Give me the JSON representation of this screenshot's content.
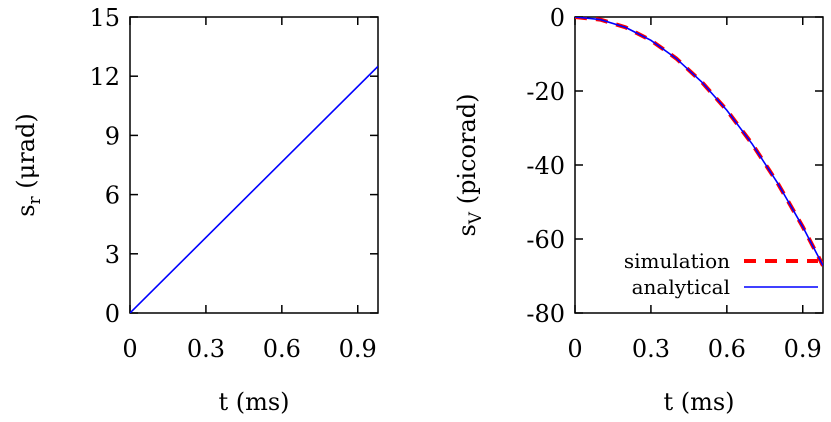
{
  "chart_data": [
    {
      "type": "line",
      "xlabel": "t (ms)",
      "ylabel": {
        "main": "s",
        "sub": "r",
        "unit": " (μrad)"
      },
      "xlim": [
        0,
        0.98
      ],
      "ylim": [
        0,
        15
      ],
      "xticks": [
        0,
        0.3,
        0.6,
        0.9
      ],
      "xtick_labels": [
        "0",
        "0.3",
        "0.6",
        "0.9"
      ],
      "yticks": [
        0,
        3,
        6,
        9,
        12,
        15
      ],
      "ytick_labels": [
        "0",
        "3",
        "6",
        "9",
        "12",
        "15"
      ],
      "grid": false,
      "series": [
        {
          "color": "#0000ff",
          "dash": "solid",
          "x": [
            0,
            0.98
          ],
          "y": [
            0,
            12.5
          ]
        }
      ]
    },
    {
      "type": "line",
      "xlabel": "t (ms)",
      "ylabel": {
        "main": "s",
        "sub": "V",
        "unit": " (picorad)"
      },
      "xlim": [
        0,
        0.98
      ],
      "ylim": [
        -80,
        0
      ],
      "xticks": [
        0,
        0.3,
        0.6,
        0.9
      ],
      "xtick_labels": [
        "0",
        "0.3",
        "0.6",
        "0.9"
      ],
      "yticks": [
        -80,
        -60,
        -40,
        -20,
        0
      ],
      "ytick_labels": [
        "-80",
        "-60",
        "-40",
        "-20",
        "0"
      ],
      "grid": false,
      "legend": "bottom-right",
      "series": [
        {
          "name": "simulation",
          "color": "#ff0000",
          "dash": "dashed",
          "x": [
            0,
            0.1,
            0.2,
            0.3,
            0.4,
            0.5,
            0.6,
            0.7,
            0.8,
            0.9,
            0.98
          ],
          "y": [
            0,
            -0.7,
            -2.8,
            -6.3,
            -11.2,
            -17.5,
            -25.2,
            -34.3,
            -44.8,
            -56.7,
            -67.2
          ]
        },
        {
          "name": "analytical",
          "color": "#0000ff",
          "dash": "solid",
          "x": [
            0,
            0.1,
            0.2,
            0.3,
            0.4,
            0.5,
            0.6,
            0.7,
            0.8,
            0.9,
            0.98
          ],
          "y": [
            0,
            -0.7,
            -2.8,
            -6.3,
            -11.2,
            -17.5,
            -25.2,
            -34.3,
            -44.8,
            -56.7,
            -67.2
          ]
        }
      ]
    }
  ]
}
